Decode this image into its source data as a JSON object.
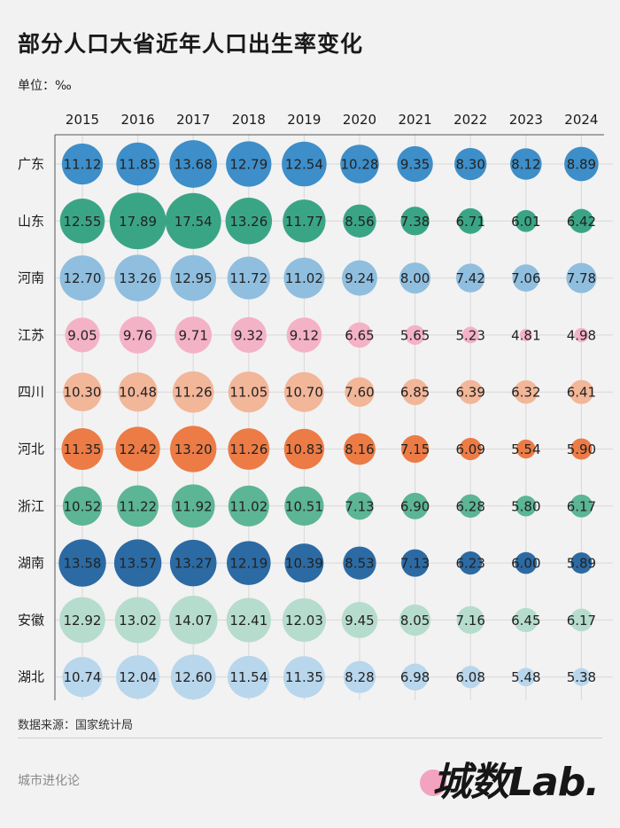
{
  "title": "部分人口大省近年人口出生率变化",
  "unit_label": "单位：‰",
  "source": "数据来源：国家统计局",
  "footer_brand": "城市进化论",
  "logo_text": "城数Lab.",
  "colors": {
    "background": "#f2f2f2",
    "logo_dot": "#f3a2c0",
    "广东": "#3d8ec9",
    "山东": "#3aa585",
    "河南": "#8fbedf",
    "江苏": "#f4b2c7",
    "四川": "#f2b699",
    "河北": "#ec7b46",
    "浙江": "#5cb594",
    "湖南": "#2c6aa3",
    "安徽": "#b6dccd",
    "湖北": "#b8d6ec"
  },
  "chart_data": {
    "type": "bubble-matrix",
    "title": "部分人口大省近年人口出生率变化",
    "unit": "‰",
    "years": [
      "2015",
      "2016",
      "2017",
      "2018",
      "2019",
      "2020",
      "2021",
      "2022",
      "2023",
      "2024"
    ],
    "series": [
      {
        "name": "广东",
        "values": [
          11.12,
          11.85,
          13.68,
          12.79,
          12.54,
          10.28,
          9.35,
          8.3,
          8.12,
          8.89
        ]
      },
      {
        "name": "山东",
        "values": [
          12.55,
          17.89,
          17.54,
          13.26,
          11.77,
          8.56,
          7.38,
          6.71,
          6.01,
          6.42
        ]
      },
      {
        "name": "河南",
        "values": [
          12.7,
          13.26,
          12.95,
          11.72,
          11.02,
          9.24,
          8.0,
          7.42,
          7.06,
          7.78
        ]
      },
      {
        "name": "江苏",
        "values": [
          9.05,
          9.76,
          9.71,
          9.32,
          9.12,
          6.65,
          5.65,
          5.23,
          4.81,
          4.98
        ]
      },
      {
        "name": "四川",
        "values": [
          10.3,
          10.48,
          11.26,
          11.05,
          10.7,
          7.6,
          6.85,
          6.39,
          6.32,
          6.41
        ]
      },
      {
        "name": "河北",
        "values": [
          11.35,
          12.42,
          13.2,
          11.26,
          10.83,
          8.16,
          7.15,
          6.09,
          5.54,
          5.9
        ]
      },
      {
        "name": "浙江",
        "values": [
          10.52,
          11.22,
          11.92,
          11.02,
          10.51,
          7.13,
          6.9,
          6.28,
          5.8,
          6.17
        ]
      },
      {
        "name": "湖南",
        "values": [
          13.58,
          13.57,
          13.27,
          12.19,
          10.39,
          8.53,
          7.13,
          6.23,
          6.0,
          5.89
        ]
      },
      {
        "name": "安徽",
        "values": [
          12.92,
          13.02,
          14.07,
          12.41,
          12.03,
          9.45,
          8.05,
          7.16,
          6.45,
          6.17
        ]
      },
      {
        "name": "湖北",
        "values": [
          10.74,
          12.04,
          12.6,
          11.54,
          11.35,
          8.28,
          6.98,
          6.08,
          5.48,
          5.38
        ]
      }
    ]
  }
}
